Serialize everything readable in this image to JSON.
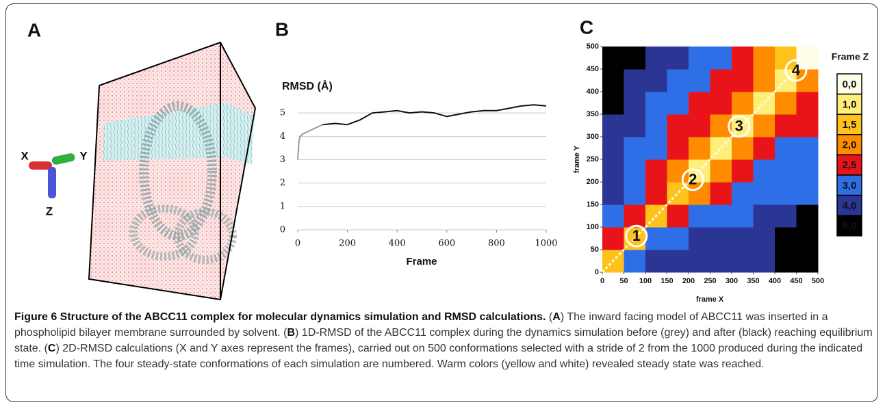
{
  "panel_labels": [
    "A",
    "B",
    "C"
  ],
  "axis_glyph": {
    "x": "X",
    "y": "Y",
    "z": "Z"
  },
  "chart_data": [
    {
      "type": "line",
      "title": "RMSD (Å)",
      "x_label": "Frame",
      "xlim": [
        0,
        1000
      ],
      "xticks": [
        0,
        200,
        400,
        600,
        800,
        1000
      ],
      "ylim": [
        0,
        6
      ],
      "yticks": [
        0,
        1,
        2,
        3,
        4,
        5
      ],
      "grid": true,
      "series": [
        {
          "color": "#9a9a9a",
          "x": [
            0,
            5,
            10,
            20,
            40,
            60,
            80,
            100
          ],
          "values": [
            3.0,
            3.8,
            4.0,
            4.1,
            4.2,
            4.3,
            4.4,
            4.5
          ]
        },
        {
          "color": "#111111",
          "x": [
            100,
            150,
            200,
            250,
            300,
            350,
            400,
            450,
            500,
            550,
            600,
            650,
            700,
            750,
            800,
            850,
            900,
            950,
            1000
          ],
          "values": [
            4.5,
            4.55,
            4.5,
            4.7,
            5.0,
            5.05,
            5.1,
            5.0,
            5.05,
            5.0,
            4.85,
            4.95,
            5.05,
            5.1,
            5.1,
            5.2,
            5.3,
            5.35,
            5.3
          ]
        }
      ]
    },
    {
      "type": "heatmap",
      "x_label": "frame X",
      "y_label": "frame Y",
      "xlim": [
        0,
        500
      ],
      "xticks": [
        0,
        50,
        100,
        150,
        200,
        250,
        300,
        350,
        400,
        450,
        500
      ],
      "ylim": [
        0,
        500
      ],
      "yticks": [
        0,
        50,
        100,
        150,
        200,
        250,
        300,
        350,
        400,
        450,
        500
      ],
      "legend_title": "Frame Z",
      "levels": [
        {
          "value": 0,
          "label": "0,0"
        },
        {
          "value": 1,
          "label": "1,0"
        },
        {
          "value": 1.5,
          "label": "1,5"
        },
        {
          "value": 2,
          "label": "2,0"
        },
        {
          "value": 2.5,
          "label": "2,5"
        },
        {
          "value": 3,
          "label": "3,0"
        },
        {
          "value": 4,
          "label": "4,0"
        },
        {
          "value": 5,
          "label": "5,0"
        }
      ],
      "colors": [
        "#fffde8",
        "#ffef7a",
        "#ffc21a",
        "#ff8c00",
        "#e8141a",
        "#2e6fe8",
        "#2a3594",
        "#000000"
      ],
      "z": [
        [
          1.5,
          3,
          4,
          4,
          4,
          4,
          4,
          4,
          5,
          5
        ],
        [
          2.5,
          1.5,
          3,
          3,
          4,
          4,
          4,
          4,
          5,
          5
        ],
        [
          3,
          2.5,
          1.5,
          2.5,
          3,
          3,
          3,
          4,
          4,
          5
        ],
        [
          4,
          3,
          2.5,
          1.5,
          2,
          2.5,
          3,
          3,
          3,
          3
        ],
        [
          4,
          3,
          2.5,
          2,
          1,
          2,
          2.5,
          3,
          3,
          3
        ],
        [
          4,
          3,
          3,
          2.5,
          2,
          1,
          2,
          2.5,
          3,
          3
        ],
        [
          4,
          4,
          3,
          2.5,
          2.5,
          2,
          1,
          2,
          2.5,
          2.5
        ],
        [
          5,
          4,
          3,
          3,
          2.5,
          2.5,
          2,
          1,
          2,
          2.5
        ],
        [
          5,
          4,
          4,
          3,
          3,
          2.5,
          2.5,
          2,
          1,
          2
        ],
        [
          5,
          5,
          4,
          4,
          3,
          3,
          2.5,
          2,
          1.5,
          0
        ]
      ],
      "annotations": [
        {
          "text": "1",
          "x": 79,
          "y": 80
        },
        {
          "text": "2",
          "x": 210,
          "y": 205
        },
        {
          "text": "3",
          "x": 317,
          "y": 323
        },
        {
          "text": "4",
          "x": 449,
          "y": 447
        }
      ]
    }
  ],
  "caption": {
    "title": "Figure 6 Structure of the ABCC11 complex for molecular dynamics simulation and RMSD calculations.",
    "segments": [
      " (",
      "A",
      ") The inward facing model of ABCC11 was inserted in a phospholipid bilayer membrane surrounded by solvent. (",
      "B",
      ") 1D-RMSD of the ABCC11 complex during the dynamics simulation before (grey) and after (black) reaching equilibrium state. (",
      "C",
      ") 2D-RMSD calculations (X and Y axes represent the frames), carried out on 500 conformations selected with a stride of 2 from the 1000 produced during the indicated time simulation. The four steady-state conformations of each simulation are numbered. Warm colors (yellow and white) revealed steady state was reached."
    ]
  }
}
